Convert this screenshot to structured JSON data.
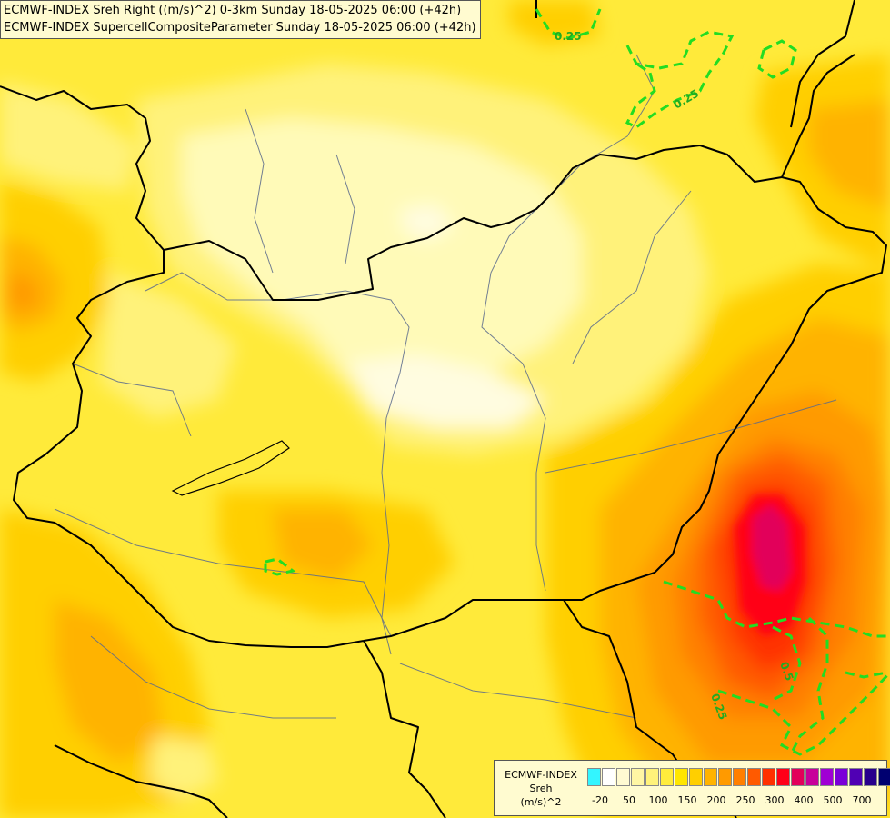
{
  "titles": {
    "line1": "ECMWF-INDEX Sreh Right ((m/s)^2) 0-3km Sunday 18-05-2025 06:00 (+42h)",
    "line2": "ECMWF-INDEX SupercellCompositeParameter Sunday 18-05-2025 06:00 (+42h)"
  },
  "legend": {
    "name_line1": "ECMWF-INDEX",
    "name_line2": "Sreh",
    "name_line3": "(m/s)^2",
    "swatches": [
      {
        "color": "#33f5ff"
      },
      {
        "color": "#ffffff"
      },
      {
        "color": "#fffad2"
      },
      {
        "color": "#fff6a4"
      },
      {
        "color": "#fff27a"
      },
      {
        "color": "#ffec3c"
      },
      {
        "color": "#ffe600"
      },
      {
        "color": "#ffcf00"
      },
      {
        "color": "#ffb300"
      },
      {
        "color": "#ff9a00"
      },
      {
        "color": "#ff7f00"
      },
      {
        "color": "#ff5a00"
      },
      {
        "color": "#ff3000"
      },
      {
        "color": "#ff0018"
      },
      {
        "color": "#e2005a"
      },
      {
        "color": "#c8009a"
      },
      {
        "color": "#a000d4"
      },
      {
        "color": "#7a00d8"
      },
      {
        "color": "#5000b4"
      },
      {
        "color": "#28008c"
      },
      {
        "color": "#000070"
      }
    ],
    "ticks": [
      "-20",
      "50",
      "100",
      "150",
      "200",
      "250",
      "300",
      "400",
      "500",
      "700"
    ]
  },
  "contour_labels": {
    "top_left": "0.25",
    "top_right": "0.25",
    "bottom_a": "0.5",
    "bottom_b": "0.25"
  },
  "colors": {
    "background": "#ffe84a",
    "scp_contour": "#22dd22",
    "border": "#000000",
    "river": "#5a6a8c"
  }
}
